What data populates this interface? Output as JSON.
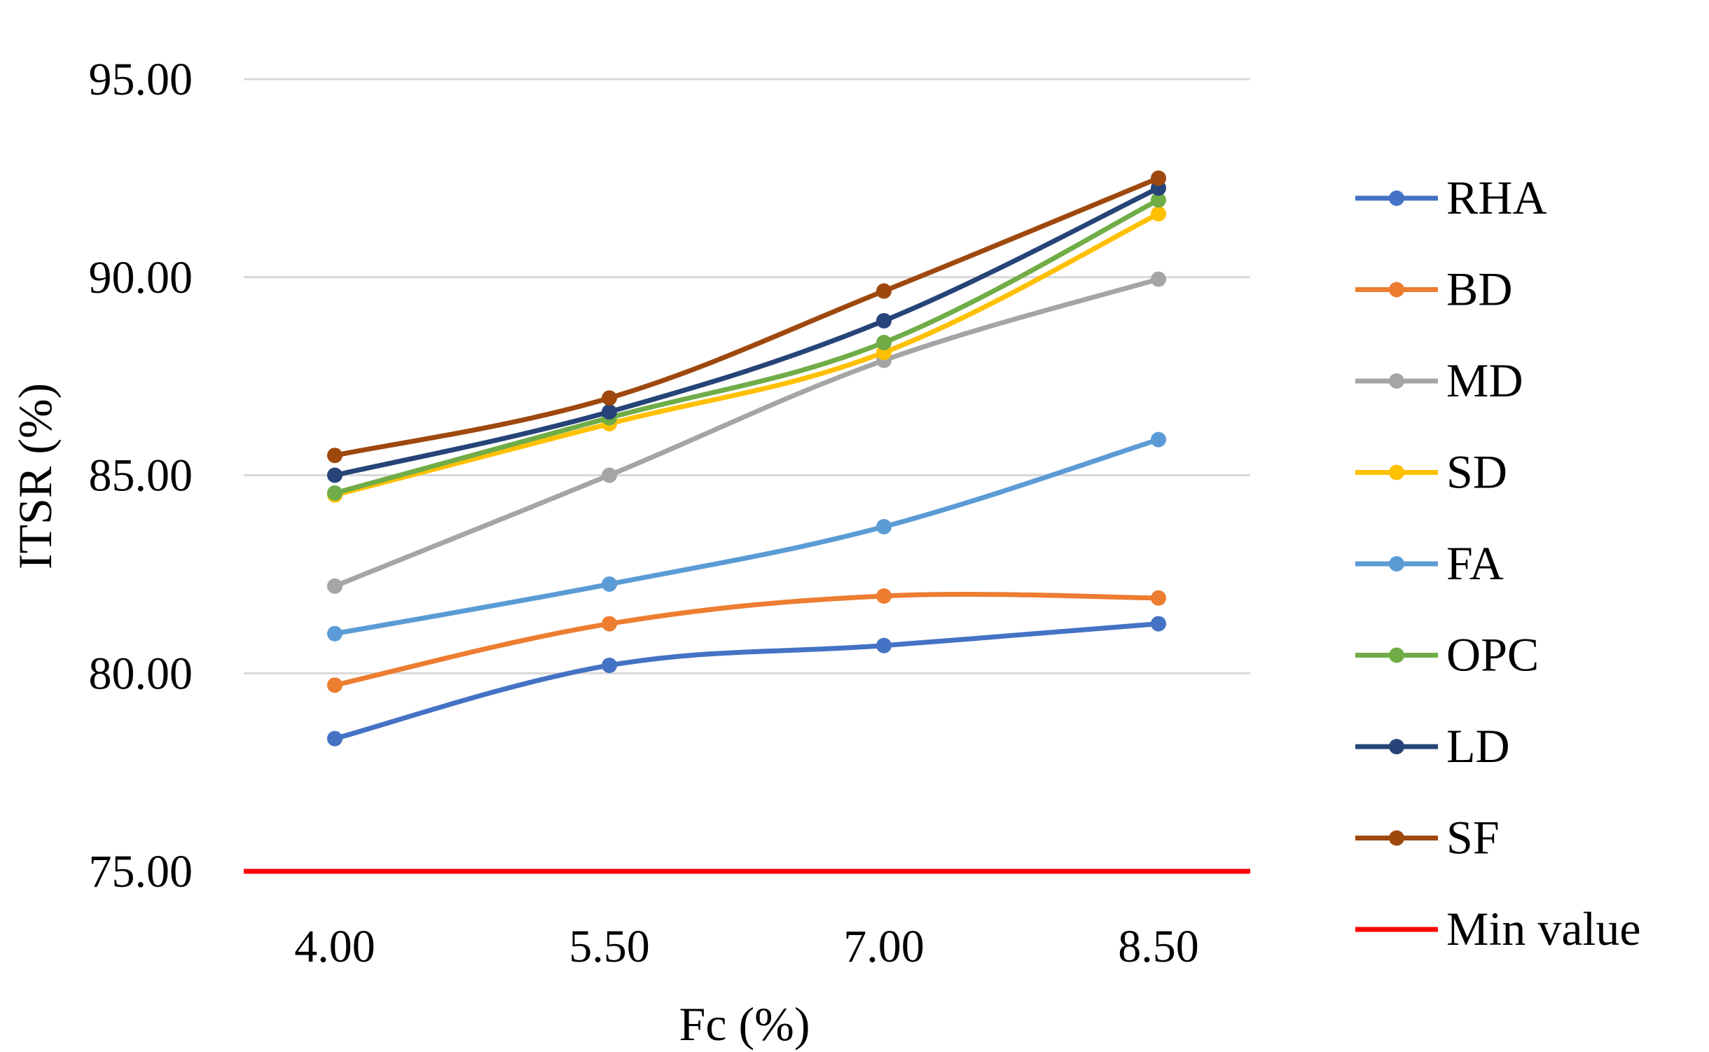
{
  "chart_data": {
    "type": "line",
    "title": "",
    "xlabel": "Fc (%)",
    "ylabel": "ITSR (%)",
    "categories": [
      "4.00",
      "5.50",
      "7.00",
      "8.50"
    ],
    "ylim": [
      75,
      95
    ],
    "yticks": [
      "75.00",
      "80.00",
      "85.00",
      "90.00",
      "95.00"
    ],
    "grid": true,
    "legend_position": "right",
    "series": [
      {
        "name": "RHA",
        "color": "#4472C4",
        "values": [
          78.35,
          80.2,
          80.7,
          81.25
        ]
      },
      {
        "name": "BD",
        "color": "#ED7D31",
        "values": [
          79.7,
          81.25,
          81.95,
          81.9
        ]
      },
      {
        "name": "MD",
        "color": "#A5A5A5",
        "values": [
          82.2,
          85.0,
          87.9,
          89.95
        ]
      },
      {
        "name": "SD",
        "color": "#FFC000",
        "values": [
          84.5,
          86.3,
          88.1,
          91.6
        ]
      },
      {
        "name": "FA",
        "color": "#5B9BD5",
        "values": [
          81.0,
          82.25,
          83.7,
          85.9
        ]
      },
      {
        "name": "OPC",
        "color": "#70AD47",
        "values": [
          84.55,
          86.45,
          88.35,
          91.95
        ]
      },
      {
        "name": "LD",
        "color": "#264478",
        "values": [
          85.0,
          86.6,
          88.9,
          92.25
        ]
      },
      {
        "name": "SF",
        "color": "#9E480E",
        "values": [
          85.5,
          86.95,
          89.65,
          92.5
        ]
      }
    ],
    "reference_line": {
      "name": "Min value",
      "value": 75,
      "color": "#FF0000"
    }
  }
}
